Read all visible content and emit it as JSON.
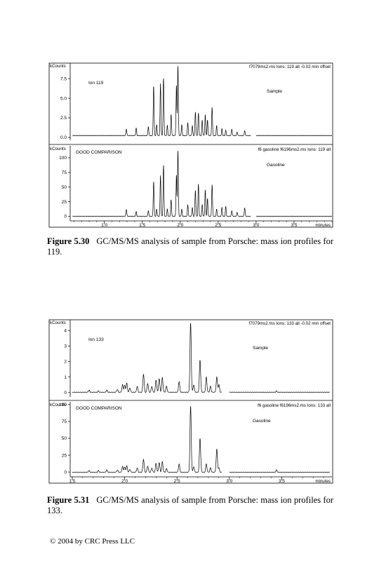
{
  "figures": [
    {
      "caption_label": "Figure 5.30",
      "caption_text": "GC/MS/MS analysis of sample from Porsche: mass ion profiles for 119."
    },
    {
      "caption_label": "Figure 5.31",
      "caption_text": "GC/MS/MS analysis of sample from Porsche: mass ion profiles for 133."
    }
  ],
  "copyright": "© 2004 by CRC Press LLC",
  "chart_data": [
    {
      "type": "line",
      "x_unit_label": "minutes",
      "x_ticks": [
        "1.0",
        "1.5",
        "2.0",
        "2.5",
        "3.0",
        "3.5"
      ],
      "xlim": [
        0.55,
        4.0
      ],
      "panels": [
        {
          "y_unit_label": "kCounts",
          "y_ticks": [
            "0.0",
            "2.5",
            "5.0",
            "7.5"
          ],
          "y_tick_values": [
            0,
            2.5,
            5.0,
            7.5
          ],
          "ylim": [
            0,
            9.3
          ],
          "header": "f7079ms2.ms Ions: 119 all -0.02 min offset",
          "ion_label": "Ion 119",
          "trace_label": "Sample",
          "peaks": [
            [
              1.29,
              1.1
            ],
            [
              1.42,
              1.2
            ],
            [
              1.58,
              1.4
            ],
            [
              1.65,
              6.6
            ],
            [
              1.69,
              1.6
            ],
            [
              1.74,
              6.9
            ],
            [
              1.78,
              7.6
            ],
            [
              1.83,
              1.5
            ],
            [
              1.88,
              2.9
            ],
            [
              1.95,
              6.6
            ],
            [
              1.97,
              9.1
            ],
            [
              2.02,
              1.6
            ],
            [
              2.1,
              1.9
            ],
            [
              2.16,
              1.5
            ],
            [
              2.2,
              3.3
            ],
            [
              2.24,
              3.1
            ],
            [
              2.29,
              2.2
            ],
            [
              2.33,
              2.9
            ],
            [
              2.36,
              2.2
            ],
            [
              2.42,
              3.9
            ],
            [
              2.48,
              1.5
            ],
            [
              2.55,
              1.1
            ],
            [
              2.6,
              0.9
            ],
            [
              2.68,
              1.1
            ],
            [
              2.75,
              0.7
            ],
            [
              2.85,
              0.9
            ]
          ],
          "segments": [
            [
              0.58,
              2.93
            ],
            [
              3.0,
              4.0
            ]
          ]
        },
        {
          "y_unit_label": "kCounts",
          "y_ticks": [
            "0",
            "25",
            "50",
            "75",
            "100"
          ],
          "y_tick_values": [
            0,
            25,
            50,
            75,
            100
          ],
          "ylim": [
            -3,
            118
          ],
          "header": "f6 gasoline f6196ms2.ms Ions: 119 all",
          "ion_label": "GOOD COMPARISON",
          "trace_label": "Gasoline",
          "peaks": [
            [
              1.29,
              12
            ],
            [
              1.42,
              8
            ],
            [
              1.58,
              10
            ],
            [
              1.65,
              60
            ],
            [
              1.69,
              12
            ],
            [
              1.74,
              70
            ],
            [
              1.78,
              88
            ],
            [
              1.83,
              12
            ],
            [
              1.88,
              28
            ],
            [
              1.95,
              70
            ],
            [
              1.97,
              112
            ],
            [
              2.02,
              12
            ],
            [
              2.1,
              20
            ],
            [
              2.16,
              15
            ],
            [
              2.2,
              45
            ],
            [
              2.24,
              55
            ],
            [
              2.29,
              20
            ],
            [
              2.33,
              45
            ],
            [
              2.36,
              30
            ],
            [
              2.42,
              55
            ],
            [
              2.48,
              12
            ],
            [
              2.55,
              15
            ],
            [
              2.6,
              17
            ],
            [
              2.68,
              10
            ],
            [
              2.75,
              7
            ],
            [
              2.85,
              15
            ]
          ],
          "segments": [
            [
              0.58,
              2.93
            ],
            [
              3.0,
              4.0
            ]
          ]
        }
      ]
    },
    {
      "type": "line",
      "x_unit_label": "minutes",
      "x_ticks": [
        "1.5",
        "2.0",
        "2.5",
        "3.0",
        "3.5"
      ],
      "xlim": [
        1.48,
        3.98
      ],
      "panels": [
        {
          "y_unit_label": "kCounts",
          "y_ticks": [
            "0",
            "1",
            "2",
            "3",
            "4"
          ],
          "y_tick_values": [
            0,
            1,
            2,
            3,
            4
          ],
          "ylim": [
            -0.1,
            4.6
          ],
          "header": "f7079ms2.ms Ions: 133 all -0.02 min offset",
          "ion_label": "Ion 133",
          "trace_label": "Sample",
          "peaks": [
            [
              1.66,
              0.15
            ],
            [
              1.75,
              0.1
            ],
            [
              1.83,
              0.15
            ],
            [
              1.93,
              0.2
            ],
            [
              1.98,
              0.5
            ],
            [
              2.0,
              0.45
            ],
            [
              2.02,
              0.6
            ],
            [
              2.05,
              0.3
            ],
            [
              2.12,
              0.4
            ],
            [
              2.18,
              1.2
            ],
            [
              2.22,
              0.6
            ],
            [
              2.26,
              0.4
            ],
            [
              2.3,
              0.8
            ],
            [
              2.33,
              0.9
            ],
            [
              2.36,
              0.95
            ],
            [
              2.4,
              0.4
            ],
            [
              2.52,
              0.7
            ],
            [
              2.63,
              4.5
            ],
            [
              2.66,
              0.5
            ],
            [
              2.72,
              2.1
            ],
            [
              2.78,
              1.0
            ],
            [
              2.82,
              0.4
            ],
            [
              2.88,
              1.0
            ],
            [
              2.9,
              0.5
            ],
            [
              3.45,
              0.1
            ]
          ],
          "segments": [
            [
              1.5,
              2.93
            ],
            [
              3.0,
              3.96
            ]
          ]
        },
        {
          "y_unit_label": "kCounts",
          "y_ticks": [
            "0",
            "25",
            "50",
            "75",
            "100"
          ],
          "y_tick_values": [
            0,
            25,
            50,
            75,
            100
          ],
          "ylim": [
            -3,
            102
          ],
          "header": "f6 gasoline f6196ms2.ms Ions: 133 all",
          "ion_label": "GOOD COMPARISON",
          "trace_label": "Gasoline",
          "peaks": [
            [
              1.66,
              2
            ],
            [
              1.75,
              2
            ],
            [
              1.83,
              3
            ],
            [
              1.93,
              3
            ],
            [
              1.98,
              8
            ],
            [
              2.0,
              7
            ],
            [
              2.02,
              9
            ],
            [
              2.05,
              4
            ],
            [
              2.12,
              6
            ],
            [
              2.18,
              19
            ],
            [
              2.22,
              9
            ],
            [
              2.26,
              6
            ],
            [
              2.3,
              13
            ],
            [
              2.33,
              14
            ],
            [
              2.36,
              15
            ],
            [
              2.4,
              5
            ],
            [
              2.52,
              12
            ],
            [
              2.63,
              98
            ],
            [
              2.66,
              8
            ],
            [
              2.72,
              50
            ],
            [
              2.78,
              12
            ],
            [
              2.82,
              6
            ],
            [
              2.88,
              34
            ],
            [
              2.9,
              6
            ],
            [
              3.45,
              3
            ]
          ],
          "segments": [
            [
              1.5,
              2.93
            ],
            [
              3.0,
              3.96
            ]
          ]
        }
      ]
    }
  ]
}
